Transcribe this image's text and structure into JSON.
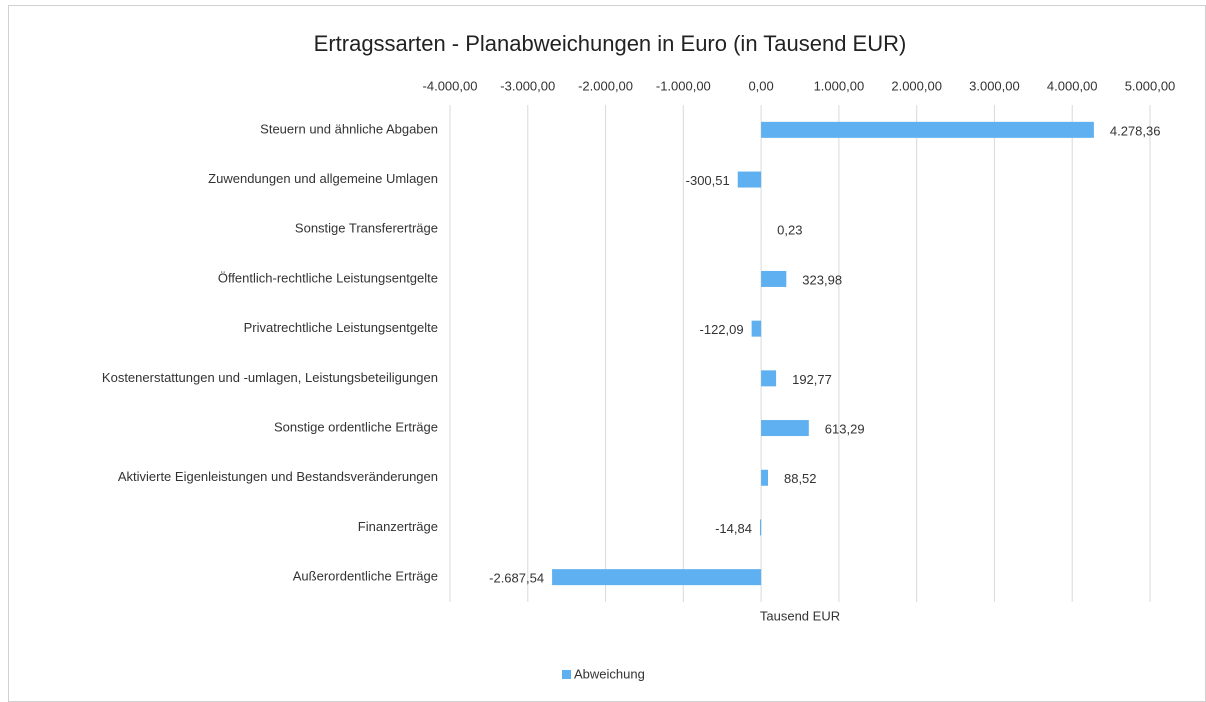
{
  "chart_data": {
    "type": "bar",
    "orientation": "horizontal",
    "title": "Ertragssarten - Planabweichungen in Euro (in Tausend EUR)",
    "x_axis_label": "Tausend EUR",
    "categories": [
      "Steuern und ähnliche Abgaben",
      "Zuwendungen und allgemeine Umlagen",
      "Sonstige Transfererträge",
      "Öffentlich-rechtliche Leistungsentgelte",
      "Privatrechtliche Leistungsentgelte",
      "Kostenerstattungen und -umlagen, Leistungsbeteiligungen",
      "Sonstige ordentliche Erträge",
      "Aktivierte Eigenleistungen und Bestandsveränderungen",
      "Finanzerträge",
      "Außerordentliche Erträge"
    ],
    "series": [
      {
        "name": "Abweichung",
        "color": "#5fb0f0",
        "values": [
          4278.36,
          -300.51,
          0.23,
          323.98,
          -122.09,
          192.77,
          613.29,
          88.52,
          -14.84,
          -2687.54
        ],
        "value_labels": [
          "4.278,36",
          "-300,51",
          "0,23",
          "323,98",
          "-122,09",
          "192,77",
          "613,29",
          "88,52",
          "-14,84",
          "-2.687,54"
        ]
      }
    ],
    "xlim": [
      -4000,
      5000
    ],
    "xticks": [
      {
        "value": -4000,
        "label": "-4.000,00"
      },
      {
        "value": -3000,
        "label": "-3.000,00"
      },
      {
        "value": -2000,
        "label": "-2.000,00"
      },
      {
        "value": -1000,
        "label": "-1.000,00"
      },
      {
        "value": 0,
        "label": "0,00"
      },
      {
        "value": 1000,
        "label": "1.000,00"
      },
      {
        "value": 2000,
        "label": "2.000,00"
      },
      {
        "value": 3000,
        "label": "3.000,00"
      },
      {
        "value": 4000,
        "label": "4.000,00"
      },
      {
        "value": 5000,
        "label": "5.000,00"
      }
    ],
    "grid": true,
    "legend": "bottom"
  }
}
